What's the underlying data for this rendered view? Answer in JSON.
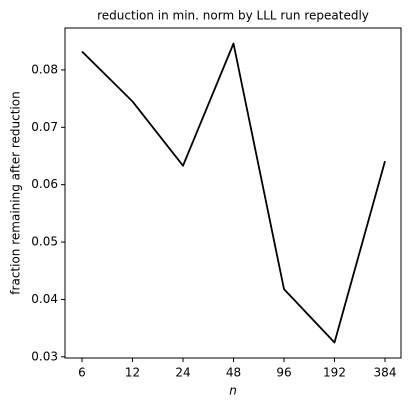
{
  "chart_data": {
    "type": "line",
    "title": "reduction in min. norm by LLL run repeatedly",
    "x_label": "n",
    "y_label": "fraction remaining after reduction",
    "categories": [
      "6",
      "12",
      "24",
      "48",
      "96",
      "192",
      "384"
    ],
    "values": [
      0.0832,
      0.0745,
      0.0633,
      0.0846,
      0.0418,
      0.0325,
      0.0641
    ],
    "color": "#000000",
    "ylim": [
      0.0298,
      0.0873
    ],
    "yticks": [
      0.03,
      0.04,
      0.05,
      0.06,
      0.07,
      0.08
    ],
    "grid": false
  }
}
